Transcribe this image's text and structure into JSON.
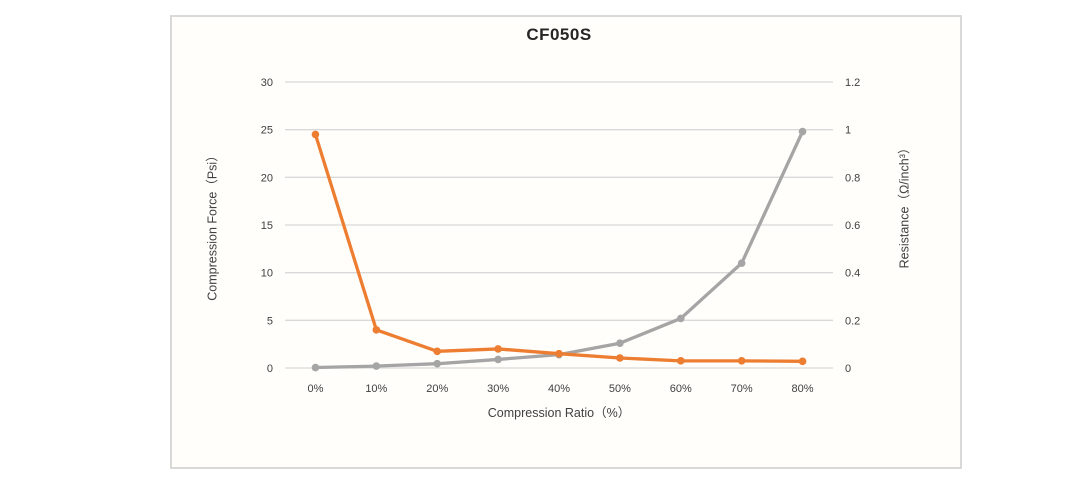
{
  "chart": {
    "border_color": "#d9d9d9",
    "background": "#fffefa"
  },
  "chart_data": {
    "type": "line",
    "title": "CF050S",
    "xlabel": "Compression Ratio（%）",
    "ylabel_left": "Compression Force（Psi）",
    "ylabel_right": "Resistance（Ω/inch³）",
    "categories": [
      "0%",
      "10%",
      "20%",
      "30%",
      "40%",
      "50%",
      "60%",
      "70%",
      "80%"
    ],
    "left_axis": {
      "min": 0,
      "max": 30,
      "step": 5,
      "ticks": [
        "0",
        "5",
        "10",
        "15",
        "20",
        "25",
        "30"
      ]
    },
    "right_axis": {
      "min": 0,
      "max": 1.2,
      "step": 0.2,
      "ticks": [
        "0",
        "0.2",
        "0.4",
        "0.6",
        "0.8",
        "1",
        "1.2"
      ]
    },
    "series": [
      {
        "name": "Compression Force",
        "axis": "left",
        "color": "#a5a5a5",
        "values": [
          0.05,
          0.2,
          0.45,
          0.9,
          1.4,
          2.6,
          5.2,
          11,
          24.8
        ]
      },
      {
        "name": "Resistance",
        "axis": "right",
        "color": "#ed7d31",
        "values": [
          0.98,
          0.16,
          0.07,
          0.08,
          0.06,
          0.042,
          0.03,
          0.03,
          0.028
        ]
      }
    ],
    "grid": "horizontal",
    "grid_color": "#d9d9d9",
    "legend": "none"
  }
}
